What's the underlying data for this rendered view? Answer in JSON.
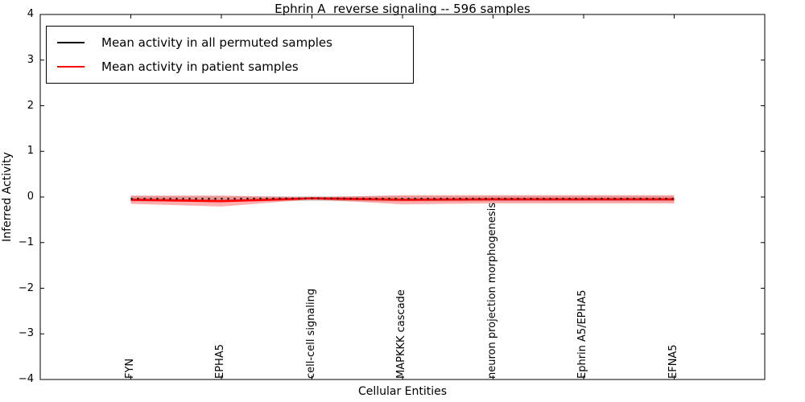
{
  "title": "Ephrin A  reverse signaling -- 596 samples",
  "axes": {
    "xlabel": "Cellular Entities",
    "ylabel": "Inferred Activity",
    "ytick_labels": [
      "4",
      "3",
      "2",
      "1",
      "0",
      "−1",
      "−2",
      "−3",
      "−4"
    ]
  },
  "legend": {
    "items": [
      {
        "label": "Mean activity in all permuted samples",
        "color": "#000000"
      },
      {
        "label": "Mean activity in patient samples",
        "color": "#ff0000"
      }
    ]
  },
  "chart_data": {
    "type": "line",
    "title": "Ephrin A  reverse signaling -- 596 samples",
    "xlabel": "Cellular Entities",
    "ylabel": "Inferred Activity",
    "xlim": [
      0,
      8
    ],
    "ylim": [
      -4,
      4
    ],
    "yticks": [
      4,
      3,
      2,
      1,
      0,
      -1,
      -2,
      -3,
      -4
    ],
    "grid": false,
    "legend_position": "upper left",
    "categories": [
      "FYN",
      "EPHA5",
      "cell-cell signaling",
      "MAPKKK cascade",
      "neuron projection morphogenesis",
      "Ephrin A5/EPHA5",
      "EFNA5"
    ],
    "category_x": [
      1,
      2,
      3,
      4,
      5,
      6,
      7
    ],
    "series": [
      {
        "name": "Mean activity in all permuted samples",
        "color": "#000000",
        "line_style": "dashed",
        "values": [
          -0.04,
          -0.04,
          -0.03,
          -0.04,
          -0.04,
          -0.04,
          -0.04
        ]
      },
      {
        "name": "Mean activity in patient samples",
        "color": "#ff0000",
        "line_style": "solid",
        "values": [
          -0.06,
          -0.09,
          -0.03,
          -0.06,
          -0.05,
          -0.05,
          -0.05
        ]
      }
    ],
    "bands": [
      {
        "name": "permuted-std-band",
        "color": "rgba(130,130,130,0.30)",
        "upper": [
          0.02,
          0.01,
          0.02,
          0.02,
          0.02,
          0.02,
          0.02
        ],
        "lower": [
          -0.1,
          -0.1,
          -0.09,
          -0.1,
          -0.1,
          -0.1,
          -0.1
        ]
      },
      {
        "name": "patient-std-band",
        "color": "rgba(255,0,0,0.32)",
        "upper": [
          0.03,
          0.03,
          -0.01,
          0.04,
          0.04,
          0.04,
          0.04
        ],
        "lower": [
          -0.15,
          -0.21,
          -0.05,
          -0.16,
          -0.14,
          -0.14,
          -0.14
        ]
      }
    ]
  }
}
